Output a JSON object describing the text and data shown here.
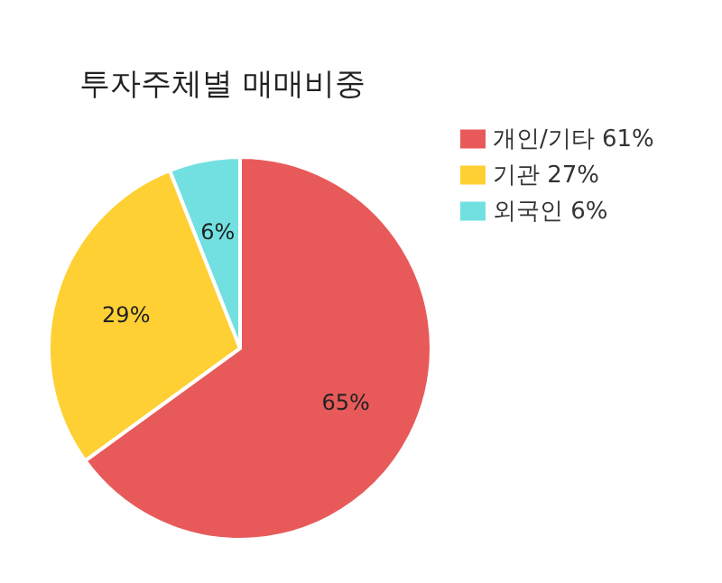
{
  "chart_data": {
    "type": "pie",
    "title": "투자주체별 매매비중",
    "categories": [
      "외국인 6%",
      "기관 27%",
      "개인/기타 61%"
    ],
    "values": [
      6,
      29,
      65
    ],
    "colors": [
      "#72e0e0",
      "#ffd033",
      "#e85a5a"
    ],
    "value_labels": [
      "6%",
      "29%",
      "65%"
    ],
    "legend": "top right"
  }
}
